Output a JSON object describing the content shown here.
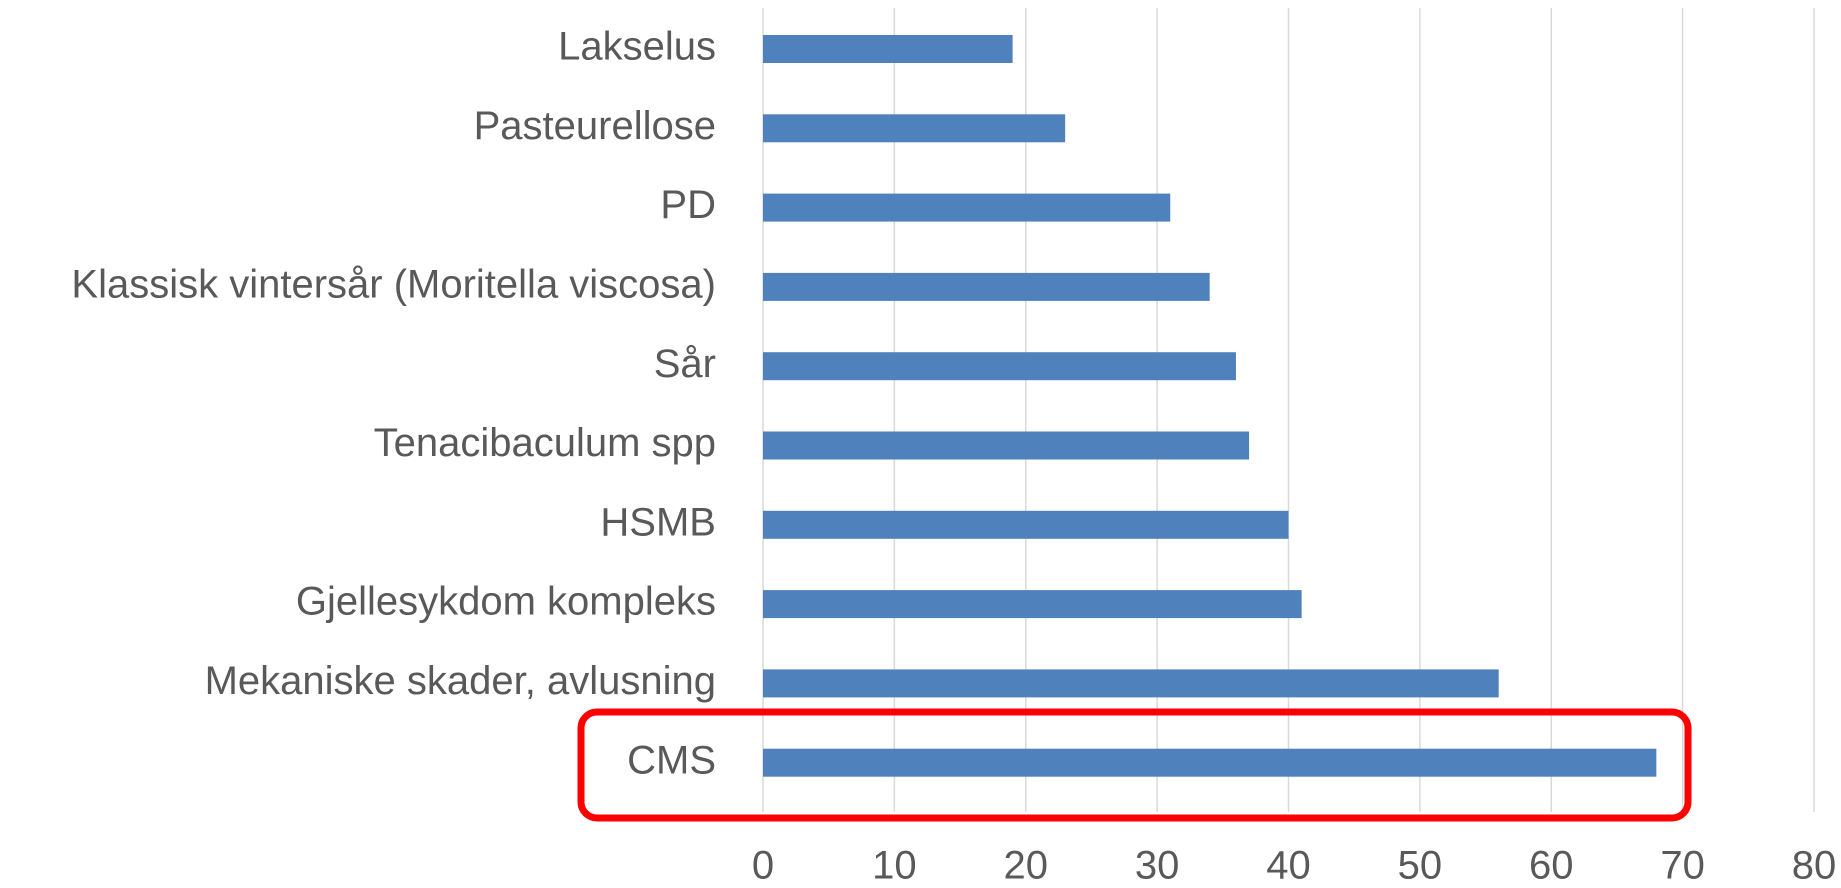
{
  "chart_data": {
    "type": "bar",
    "orientation": "horizontal",
    "categories": [
      "Lakselus",
      "Pasteurellose",
      "PD",
      "Klassisk vintersår (Moritella viscosa)",
      "Sår",
      "Tenacibaculum spp",
      "HSMB",
      "Gjellesykdom kompleks",
      "Mekaniske skader, avlusning",
      "CMS"
    ],
    "values": [
      19,
      23,
      31,
      34,
      36,
      37,
      40,
      41,
      56,
      68
    ],
    "color": "#4f81bd",
    "xlim": [
      0,
      80
    ],
    "xticks": [
      0,
      10,
      20,
      30,
      40,
      50,
      60,
      70,
      80
    ],
    "grid": true,
    "highlight_color": "#ff0000"
  }
}
